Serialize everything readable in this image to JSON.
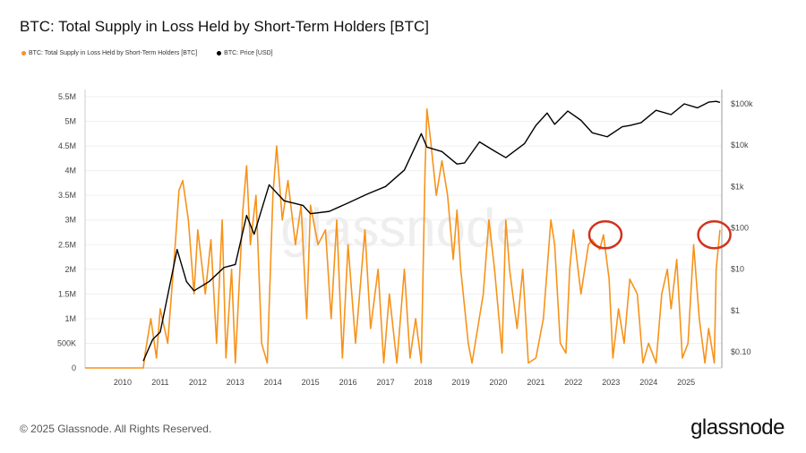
{
  "title": "BTC: Total Supply in Loss Held by Short-Term Holders [BTC]",
  "footer": "© 2025 Glassnode. All Rights Reserved.",
  "logo": "glassnode",
  "watermark": "glassnode",
  "chart_data": {
    "type": "line",
    "title": "BTC: Total Supply in Loss Held by Short-Term Holders [BTC]",
    "legend_position": "top-left",
    "grid": true,
    "x_ticks": [
      "2010",
      "2011",
      "2012",
      "2013",
      "2014",
      "2015",
      "2016",
      "2017",
      "2018",
      "2019",
      "2020",
      "2021",
      "2022",
      "2023",
      "2024",
      "2025"
    ],
    "xlim": [
      2009.0,
      2025.95
    ],
    "y_left": {
      "ticks": [
        "0",
        "500K",
        "1M",
        "1.5M",
        "2M",
        "2.5M",
        "3M",
        "3.5M",
        "4M",
        "4.5M",
        "5M",
        "5.5M"
      ],
      "ylim": [
        0,
        5500000
      ],
      "scale": "linear"
    },
    "y_right": {
      "ticks": [
        "$0.10",
        "$1",
        "$10",
        "$100",
        "$1k",
        "$10k",
        "$100k"
      ],
      "scale": "log"
    },
    "series": [
      {
        "name": "BTC: Total Supply in Loss Held by Short-Term Holders [BTC]",
        "axis": "left",
        "color": "#f7931a",
        "x": [
          2009.0,
          2010.55,
          2010.6,
          2010.75,
          2010.9,
          2011.0,
          2011.2,
          2011.4,
          2011.5,
          2011.6,
          2011.75,
          2011.9,
          2012.0,
          2012.2,
          2012.35,
          2012.5,
          2012.65,
          2012.75,
          2012.9,
          2013.0,
          2013.2,
          2013.3,
          2013.4,
          2013.55,
          2013.7,
          2013.85,
          2014.0,
          2014.1,
          2014.25,
          2014.4,
          2014.6,
          2014.75,
          2014.9,
          2015.0,
          2015.2,
          2015.4,
          2015.55,
          2015.7,
          2015.85,
          2016.0,
          2016.2,
          2016.45,
          2016.6,
          2016.8,
          2016.95,
          2017.1,
          2017.3,
          2017.5,
          2017.65,
          2017.8,
          2017.95,
          2018.05,
          2018.1,
          2018.2,
          2018.35,
          2018.5,
          2018.65,
          2018.8,
          2018.9,
          2019.0,
          2019.2,
          2019.3,
          2019.6,
          2019.75,
          2019.9,
          2020.1,
          2020.2,
          2020.3,
          2020.5,
          2020.65,
          2020.8,
          2021.0,
          2021.2,
          2021.4,
          2021.5,
          2021.65,
          2021.8,
          2021.9,
          2022.0,
          2022.2,
          2022.4,
          2022.5,
          2022.7,
          2022.8,
          2022.95,
          2023.05,
          2023.2,
          2023.35,
          2023.5,
          2023.7,
          2023.85,
          2024.0,
          2024.2,
          2024.35,
          2024.5,
          2024.6,
          2024.75,
          2024.9,
          2025.05,
          2025.2,
          2025.35,
          2025.5,
          2025.6,
          2025.75,
          2025.8,
          2025.9
        ],
        "y": [
          0,
          0,
          300000,
          1000000,
          200000,
          1200000,
          500000,
          2500000,
          3600000,
          3800000,
          3000000,
          1500000,
          2800000,
          1500000,
          2600000,
          500000,
          3000000,
          200000,
          2000000,
          100000,
          3200000,
          4100000,
          2500000,
          3500000,
          500000,
          100000,
          3500000,
          4500000,
          3000000,
          3800000,
          2500000,
          3300000,
          1000000,
          3300000,
          2500000,
          2800000,
          1000000,
          3000000,
          200000,
          2500000,
          500000,
          2800000,
          800000,
          2000000,
          100000,
          1500000,
          100000,
          2000000,
          200000,
          1000000,
          100000,
          4000000,
          5250000,
          4600000,
          3500000,
          4200000,
          3500000,
          2200000,
          3200000,
          2000000,
          500000,
          100000,
          1500000,
          3000000,
          2000000,
          300000,
          3000000,
          2000000,
          800000,
          2000000,
          100000,
          200000,
          1000000,
          3000000,
          2500000,
          500000,
          300000,
          2000000,
          2800000,
          1500000,
          2500000,
          2600000,
          2400000,
          2700000,
          1800000,
          200000,
          1200000,
          500000,
          1800000,
          1500000,
          100000,
          500000,
          100000,
          1500000,
          2000000,
          1200000,
          2200000,
          200000,
          500000,
          2500000,
          1000000,
          100000,
          800000,
          100000,
          2000000,
          2800000
        ]
      },
      {
        "name": "BTC: Price [USD]",
        "axis": "right",
        "color": "#000000",
        "x": [
          2010.55,
          2010.8,
          2011.0,
          2011.45,
          2011.7,
          2011.9,
          2012.3,
          2012.7,
          2013.0,
          2013.3,
          2013.5,
          2013.9,
          2014.3,
          2014.8,
          2015.0,
          2015.5,
          2016.0,
          2016.5,
          2017.0,
          2017.5,
          2017.95,
          2018.1,
          2018.5,
          2018.9,
          2019.1,
          2019.5,
          2019.9,
          2020.2,
          2020.7,
          2021.0,
          2021.3,
          2021.5,
          2021.85,
          2022.2,
          2022.5,
          2022.9,
          2023.3,
          2023.5,
          2023.8,
          2024.2,
          2024.6,
          2024.95,
          2025.3,
          2025.6,
          2025.8,
          2025.9
        ],
        "y": [
          0.06,
          0.2,
          0.3,
          30,
          5,
          3,
          5,
          11,
          13,
          200,
          70,
          1100,
          450,
          350,
          220,
          250,
          400,
          650,
          1000,
          2500,
          19000,
          9000,
          7000,
          3500,
          3700,
          12000,
          7200,
          5000,
          11000,
          30000,
          60000,
          32000,
          67000,
          40000,
          20000,
          16000,
          28000,
          30000,
          35000,
          70000,
          55000,
          100000,
          80000,
          110000,
          115000,
          108000
        ]
      }
    ],
    "annotations": [
      {
        "type": "circle",
        "color": "#d0331f",
        "x": 2022.85,
        "y": 2700000
      },
      {
        "type": "circle",
        "color": "#d0331f",
        "x": 2025.75,
        "y": 2700000
      }
    ]
  }
}
